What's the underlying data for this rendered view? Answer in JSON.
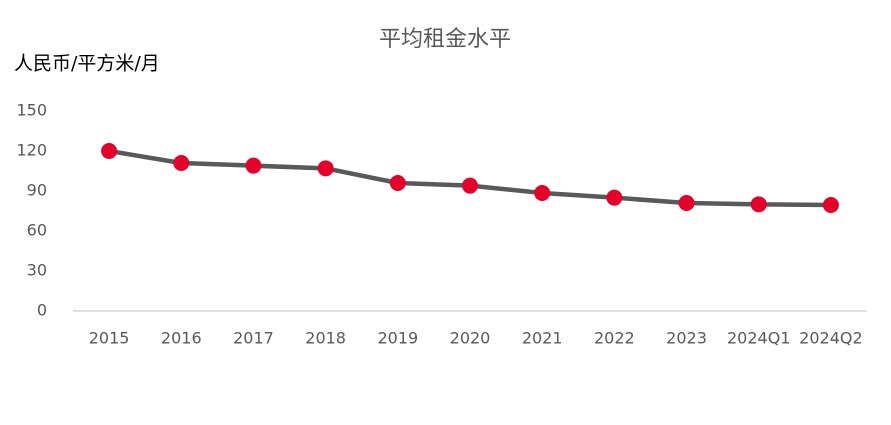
{
  "chart_data": {
    "type": "line",
    "title": "平均租金水平",
    "y_label": "人民币/平方米/月",
    "categories": [
      "2015",
      "2016",
      "2017",
      "2018",
      "2019",
      "2020",
      "2021",
      "2022",
      "2023",
      "2024Q1",
      "2024Q2"
    ],
    "values": [
      120,
      111,
      109,
      107,
      96,
      94,
      88.5,
      85,
      81,
      80,
      79.5
    ],
    "line_color": "#595959",
    "marker_color": "#e3002b",
    "ylim": [
      0,
      150
    ],
    "yticks": [
      0,
      30,
      60,
      90,
      120,
      150
    ],
    "grid": false
  }
}
